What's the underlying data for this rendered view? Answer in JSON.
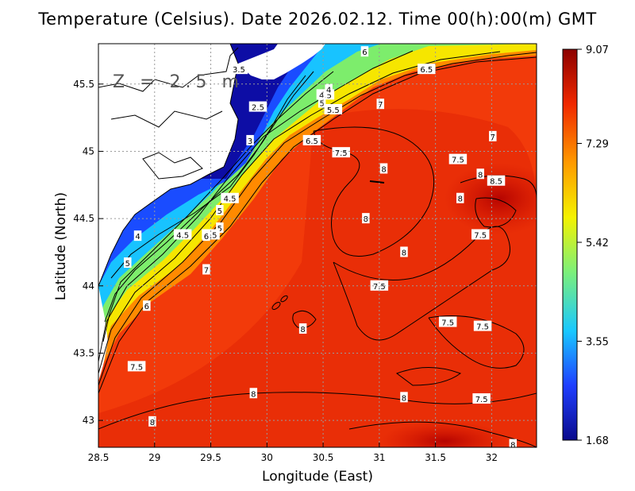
{
  "title": "Temperature (Celsius). Date 2026.02.12. Time 00(h):00(m) GMT",
  "depth_label": "Z = 2.5 m",
  "chart_data": {
    "type": "heatmap",
    "variable": "Temperature (Celsius)",
    "date": "2026.02.12",
    "time": "00(h):00(m) GMT",
    "xlabel": "Longitude (East)",
    "ylabel": "Latitude (North)",
    "xlim": [
      28.5,
      32.4
    ],
    "ylim": [
      42.8,
      45.8
    ],
    "x_ticks": [
      "28.5",
      "29",
      "29.5",
      "30",
      "30.5",
      "31",
      "31.5",
      "32"
    ],
    "y_ticks": [
      "43",
      "43.5",
      "44",
      "44.5",
      "45",
      "45.5"
    ],
    "grid": true,
    "colorbar": {
      "min": 1.68,
      "max": 9.07,
      "ticks": [
        "9.07",
        "7.29",
        "5.42",
        "3.55",
        "1.68"
      ],
      "colors": [
        "#0a0a8c",
        "#1f3fff",
        "#19c8ff",
        "#7cf07a",
        "#f4f200",
        "#ff9a00",
        "#f02800",
        "#8c0000"
      ]
    },
    "contour_labels": [
      {
        "text": "3.5",
        "lon": 29.75,
        "lat": 45.61
      },
      {
        "text": "2.5",
        "lon": 29.92,
        "lat": 45.33
      },
      {
        "text": "3",
        "lon": 29.85,
        "lat": 45.08
      },
      {
        "text": "4.5",
        "lon": 30.52,
        "lat": 45.42
      },
      {
        "text": "4",
        "lon": 30.55,
        "lat": 45.46
      },
      {
        "text": "5",
        "lon": 30.49,
        "lat": 45.36
      },
      {
        "text": "5.5",
        "lon": 30.59,
        "lat": 45.31
      },
      {
        "text": "6",
        "lon": 30.87,
        "lat": 45.74
      },
      {
        "text": "6.5",
        "lon": 31.42,
        "lat": 45.61
      },
      {
        "text": "7",
        "lon": 31.01,
        "lat": 45.35
      },
      {
        "text": "6.5",
        "lon": 30.4,
        "lat": 45.08
      },
      {
        "text": "7.5",
        "lon": 30.66,
        "lat": 44.99
      },
      {
        "text": "8",
        "lon": 31.04,
        "lat": 44.87
      },
      {
        "text": "7.5",
        "lon": 31.7,
        "lat": 44.94
      },
      {
        "text": "8",
        "lon": 31.9,
        "lat": 44.83
      },
      {
        "text": "8.5",
        "lon": 32.04,
        "lat": 44.78
      },
      {
        "text": "7",
        "lon": 32.01,
        "lat": 45.11
      },
      {
        "text": "8",
        "lon": 31.72,
        "lat": 44.65
      },
      {
        "text": "4.5",
        "lon": 29.67,
        "lat": 44.65
      },
      {
        "text": "5",
        "lon": 29.58,
        "lat": 44.56
      },
      {
        "text": "5",
        "lon": 29.58,
        "lat": 44.43
      },
      {
        "text": "4.5",
        "lon": 29.25,
        "lat": 44.38
      },
      {
        "text": "5.5",
        "lon": 29.5,
        "lat": 44.38
      },
      {
        "text": "6",
        "lon": 29.46,
        "lat": 44.37
      },
      {
        "text": "4",
        "lon": 28.85,
        "lat": 44.37
      },
      {
        "text": "5",
        "lon": 28.76,
        "lat": 44.17
      },
      {
        "text": "7",
        "lon": 29.46,
        "lat": 44.12
      },
      {
        "text": "6",
        "lon": 28.93,
        "lat": 43.85
      },
      {
        "text": "8",
        "lon": 30.88,
        "lat": 44.5
      },
      {
        "text": "8",
        "lon": 31.22,
        "lat": 44.25
      },
      {
        "text": "7.5",
        "lon": 31.9,
        "lat": 44.38
      },
      {
        "text": "7.5",
        "lon": 31.0,
        "lat": 44.0
      },
      {
        "text": "8",
        "lon": 30.32,
        "lat": 43.68
      },
      {
        "text": "7.5",
        "lon": 31.61,
        "lat": 43.73
      },
      {
        "text": "7.5",
        "lon": 31.92,
        "lat": 43.7
      },
      {
        "text": "7.5",
        "lon": 28.84,
        "lat": 43.4
      },
      {
        "text": "8",
        "lon": 29.88,
        "lat": 43.2
      },
      {
        "text": "8",
        "lon": 31.22,
        "lat": 43.17
      },
      {
        "text": "7.5",
        "lon": 31.91,
        "lat": 43.16
      },
      {
        "text": "8",
        "lon": 28.98,
        "lat": 42.99
      },
      {
        "text": "8",
        "lon": 32.19,
        "lat": 42.82
      }
    ]
  }
}
